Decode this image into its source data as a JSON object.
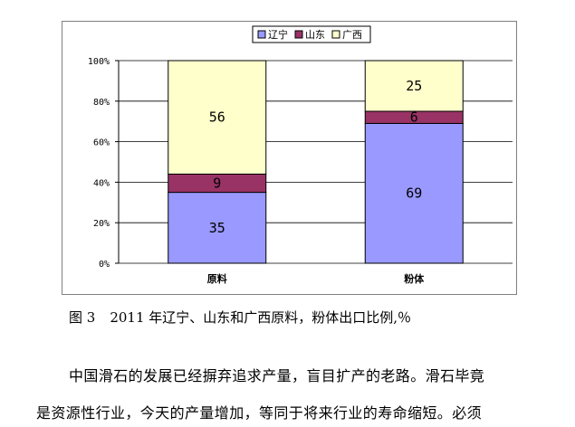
{
  "chart_data": {
    "type": "bar",
    "stacked": true,
    "percent": true,
    "categories": [
      "原料",
      "粉体"
    ],
    "series": [
      {
        "name": "辽宁",
        "values": [
          35,
          69
        ],
        "color": "#9999ff"
      },
      {
        "name": "山东",
        "values": [
          9,
          6
        ],
        "color": "#993366"
      },
      {
        "name": "广西",
        "values": [
          56,
          25
        ],
        "color": "#ffffcc"
      }
    ],
    "yticks": [
      "0%",
      "20%",
      "40%",
      "60%",
      "80%",
      "100%"
    ],
    "ylim": [
      0,
      100
    ],
    "grid": true,
    "legend": "top",
    "title": "",
    "xlabel": "",
    "ylabel": ""
  },
  "caption": {
    "number": "图 3",
    "text": "2011 年辽宁、山东和广西原料，粉体出口比例,％"
  },
  "body_text": {
    "line1": "中国滑石的发展已经摒弃追求产量，盲目扩产的老路。滑石毕竟",
    "line2": "是资源性行业，今天的产量增加，等同于将来行业的寿命缩短。必须"
  }
}
